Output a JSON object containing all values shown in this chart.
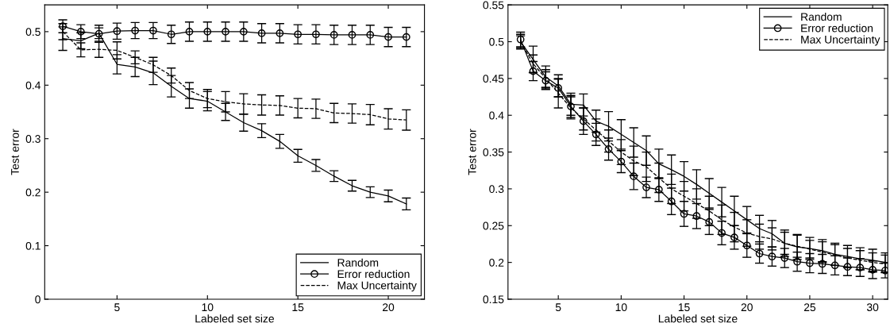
{
  "chart_data": [
    {
      "type": "line",
      "xlabel": "Labeled set size",
      "ylabel": "Test error",
      "x": [
        2,
        3,
        4,
        5,
        6,
        7,
        8,
        9,
        10,
        11,
        12,
        13,
        14,
        15,
        16,
        17,
        18,
        19,
        20,
        21
      ],
      "xlim": [
        1,
        22
      ],
      "xticks": [
        5,
        10,
        15,
        20
      ],
      "ylim": [
        0,
        0.55
      ],
      "yticks": [
        0,
        0.1,
        0.2,
        0.3,
        0.4,
        0.5
      ],
      "legend": "bottom right",
      "grid": false,
      "series": [
        {
          "name": "Random",
          "color": "#000000",
          "line_style": "solid",
          "marker": "none",
          "values": [
            0.487,
            0.483,
            0.497,
            0.439,
            0.434,
            0.423,
            0.398,
            0.375,
            0.37,
            0.35,
            0.33,
            0.315,
            0.295,
            0.268,
            0.25,
            0.23,
            0.212,
            0.2,
            0.193,
            0.178
          ],
          "errors": [
            0.022,
            0.015,
            0.01,
            0.018,
            0.018,
            0.022,
            0.02,
            0.018,
            0.018,
            0.016,
            0.016,
            0.013,
            0.013,
            0.012,
            0.011,
            0.01,
            0.01,
            0.01,
            0.011,
            0.011
          ]
        },
        {
          "name": "Error reduction",
          "color": "#000000",
          "line_style": "solid",
          "marker": "circle",
          "values": [
            0.51,
            0.5,
            0.496,
            0.501,
            0.502,
            0.502,
            0.495,
            0.5,
            0.5,
            0.5,
            0.5,
            0.497,
            0.497,
            0.495,
            0.495,
            0.494,
            0.494,
            0.494,
            0.49,
            0.49
          ],
          "errors": [
            0.012,
            0.013,
            0.016,
            0.015,
            0.015,
            0.015,
            0.017,
            0.018,
            0.018,
            0.018,
            0.018,
            0.018,
            0.018,
            0.018,
            0.018,
            0.018,
            0.018,
            0.018,
            0.018,
            0.018
          ]
        },
        {
          "name": "Max Uncertainty",
          "color": "#000000",
          "line_style": "dashed",
          "marker": "none",
          "values": [
            0.5,
            0.466,
            0.467,
            0.465,
            0.452,
            0.438,
            0.418,
            0.39,
            0.375,
            0.369,
            0.365,
            0.363,
            0.362,
            0.357,
            0.356,
            0.348,
            0.347,
            0.345,
            0.337,
            0.335
          ],
          "errors": [
            0.015,
            0.013,
            0.015,
            0.016,
            0.012,
            0.014,
            0.014,
            0.015,
            0.017,
            0.019,
            0.019,
            0.019,
            0.018,
            0.018,
            0.018,
            0.018,
            0.018,
            0.019,
            0.019,
            0.019
          ]
        }
      ]
    },
    {
      "type": "line",
      "xlabel": "Labeled set size",
      "ylabel": "Test error",
      "x": [
        2,
        3,
        4,
        5,
        6,
        7,
        8,
        9,
        10,
        11,
        12,
        13,
        14,
        15,
        16,
        17,
        18,
        19,
        20,
        21,
        22,
        23,
        24,
        25,
        26,
        27,
        28,
        29,
        30,
        31
      ],
      "xlim": [
        1,
        31.2
      ],
      "xticks": [
        5,
        10,
        15,
        20,
        25,
        30
      ],
      "ylim": [
        0.15,
        0.55
      ],
      "yticks": [
        0.15,
        0.2,
        0.25,
        0.3,
        0.35,
        0.4,
        0.45,
        0.5,
        0.55
      ],
      "legend": "top right",
      "grid": false,
      "series": [
        {
          "name": "Random",
          "color": "#000000",
          "line_style": "solid",
          "marker": "none",
          "values": [
            0.5,
            0.476,
            0.452,
            0.44,
            0.415,
            0.414,
            0.392,
            0.385,
            0.374,
            0.363,
            0.352,
            0.334,
            0.326,
            0.317,
            0.306,
            0.294,
            0.282,
            0.27,
            0.258,
            0.246,
            0.239,
            0.226,
            0.221,
            0.219,
            0.216,
            0.211,
            0.208,
            0.205,
            0.203,
            0.2
          ],
          "errors": [
            0.008,
            0.018,
            0.015,
            0.015,
            0.015,
            0.015,
            0.015,
            0.02,
            0.02,
            0.02,
            0.02,
            0.02,
            0.02,
            0.02,
            0.02,
            0.02,
            0.02,
            0.02,
            0.018,
            0.018,
            0.018,
            0.018,
            0.017,
            0.015,
            0.015,
            0.015,
            0.015,
            0.015,
            0.015,
            0.013
          ]
        },
        {
          "name": "Error reduction",
          "color": "#000000",
          "line_style": "solid",
          "marker": "circle",
          "values": [
            0.503,
            0.46,
            0.447,
            0.437,
            0.412,
            0.392,
            0.374,
            0.354,
            0.337,
            0.317,
            0.302,
            0.299,
            0.283,
            0.266,
            0.263,
            0.255,
            0.24,
            0.234,
            0.223,
            0.212,
            0.208,
            0.206,
            0.201,
            0.199,
            0.198,
            0.196,
            0.194,
            0.193,
            0.19,
            0.189
          ],
          "errors": [
            0.01,
            0.013,
            0.012,
            0.012,
            0.015,
            0.018,
            0.015,
            0.015,
            0.015,
            0.018,
            0.014,
            0.016,
            0.018,
            0.017,
            0.017,
            0.017,
            0.016,
            0.016,
            0.016,
            0.013,
            0.013,
            0.013,
            0.013,
            0.013,
            0.013,
            0.013,
            0.012,
            0.012,
            0.012,
            0.01
          ]
        },
        {
          "name": "Max Uncertainty",
          "color": "#000000",
          "line_style": "dashed",
          "marker": "none",
          "values": [
            0.5,
            0.47,
            0.45,
            0.43,
            0.41,
            0.395,
            0.38,
            0.365,
            0.35,
            0.338,
            0.33,
            0.315,
            0.3,
            0.29,
            0.28,
            0.27,
            0.258,
            0.248,
            0.24,
            0.235,
            0.232,
            0.226,
            0.222,
            0.218,
            0.214,
            0.21,
            0.206,
            0.203,
            0.2,
            0.198
          ],
          "errors": [
            0.01,
            0.012,
            0.012,
            0.02,
            0.015,
            0.015,
            0.015,
            0.015,
            0.017,
            0.02,
            0.02,
            0.02,
            0.02,
            0.02,
            0.02,
            0.02,
            0.02,
            0.02,
            0.018,
            0.017,
            0.015,
            0.015,
            0.015,
            0.012,
            0.014,
            0.014,
            0.013,
            0.013,
            0.013,
            0.012
          ]
        }
      ]
    }
  ]
}
